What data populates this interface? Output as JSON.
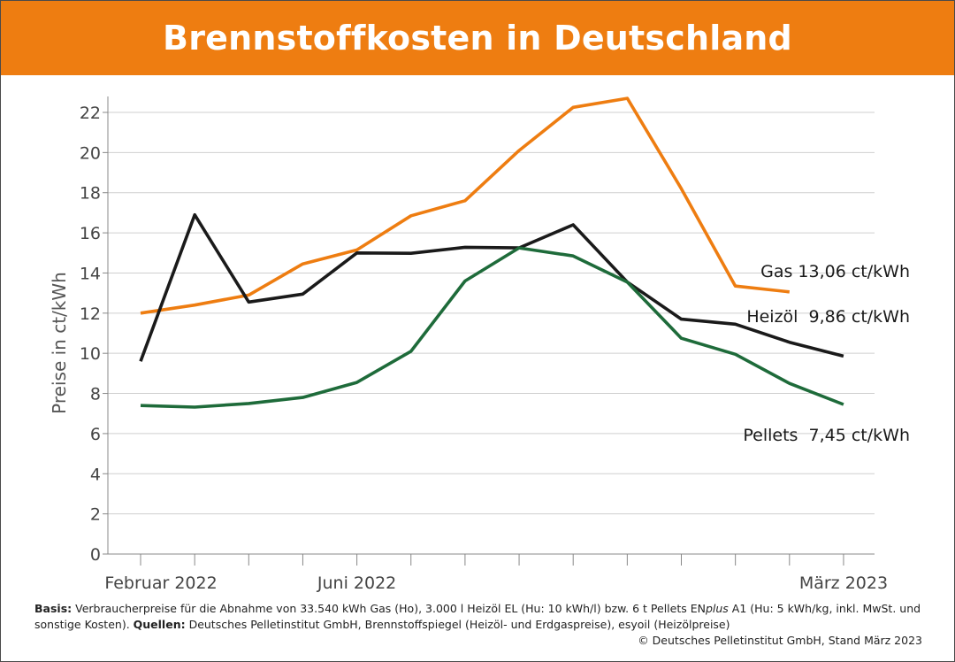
{
  "title": "Brennstoffkosten in Deutschland",
  "chart_data": {
    "type": "line",
    "ylabel": "Preise in ct/kWh",
    "ylim": [
      0,
      22
    ],
    "yticks": [
      0,
      2,
      4,
      6,
      8,
      10,
      12,
      14,
      16,
      18,
      20,
      22
    ],
    "grid": true,
    "x_count": 14,
    "x_tick_labels": [
      {
        "index": 0,
        "label": "Februar 2022"
      },
      {
        "index": 4,
        "label": "Juni 2022"
      },
      {
        "index": 13,
        "label": "März 2023"
      }
    ],
    "series": [
      {
        "key": "gas",
        "color": "#ee7d11",
        "label": "Gas 13,06 ct/kWh",
        "values": [
          12.0,
          12.4,
          12.9,
          14.45,
          15.15,
          16.85,
          17.6,
          20.1,
          22.25,
          22.7,
          18.2,
          13.35,
          13.06,
          null
        ]
      },
      {
        "key": "heizoel",
        "color": "#1a1a1a",
        "label": "Heizöl  9,86 ct/kWh",
        "values": [
          9.6,
          16.9,
          12.55,
          12.95,
          15.0,
          14.98,
          15.28,
          15.25,
          16.4,
          13.55,
          11.7,
          11.45,
          10.55,
          9.86
        ]
      },
      {
        "key": "pellets",
        "color": "#1e6b3a",
        "label": "Pellets  7,45 ct/kWh",
        "values": [
          7.4,
          7.32,
          7.5,
          7.8,
          8.55,
          10.1,
          13.6,
          15.25,
          14.85,
          13.55,
          10.75,
          9.95,
          8.5,
          7.45
        ]
      }
    ]
  },
  "footer": {
    "basis_label": "Basis:",
    "basis_text": "Verbraucherpreise für die Abnahme von 33.540 kWh Gas (Ho), 3.000 l Heizöl EL (Hu: 10 kWh/l) bzw. 6 t Pellets EN",
    "basis_italic": "plus",
    "basis_text2": " A1 (Hu: 5 kWh/kg, inkl. MwSt. und sonstige Kosten). ",
    "sources_label": "Quellen:",
    "sources_text": " Deutsches Pelletinstitut GmbH, Brennstoffspiegel (Heizöl- und Erdgaspreise), esyoil (Heizölpreise)",
    "copyright": "© Deutsches Pelletinstitut GmbH, Stand März 2023"
  }
}
